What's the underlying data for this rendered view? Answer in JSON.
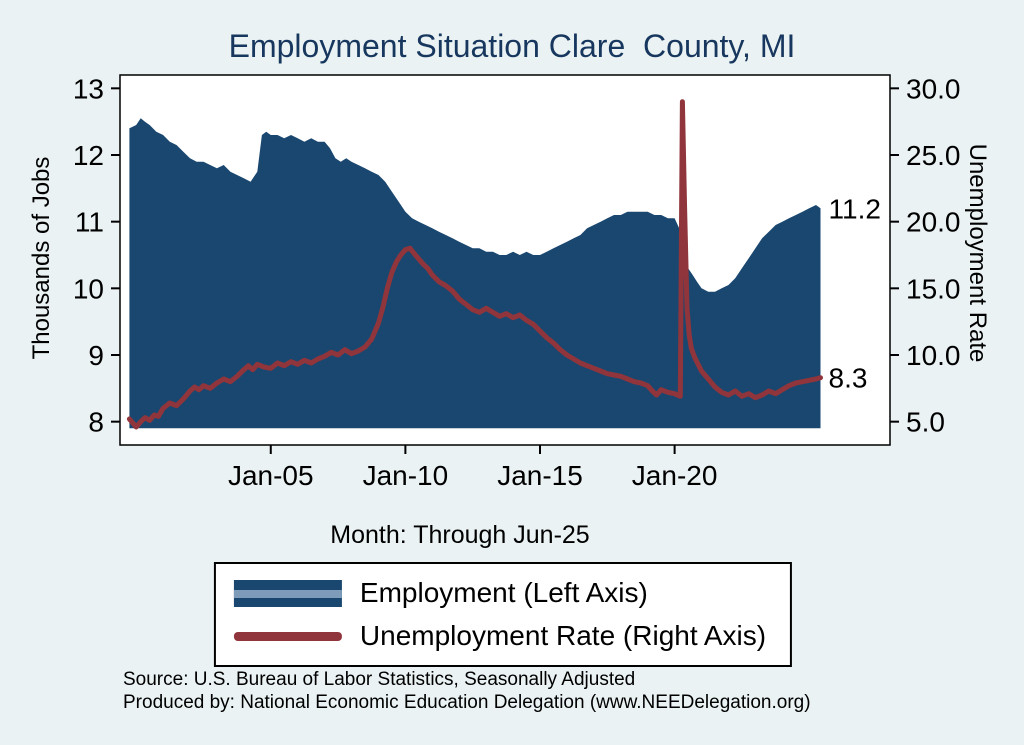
{
  "colors": {
    "background": "#eaf2f3",
    "plot_background": "#ffffff",
    "title": "#17375e",
    "area": "#1a476f",
    "line": "#90353b",
    "legend_band": "#7e9cb9",
    "text": "#000000"
  },
  "chart_data": {
    "type": "area+line",
    "title": "Employment Situation Clare  County, MI",
    "x_axis": {
      "label": "Month: Through Jun-25",
      "tick_labels": [
        "Jan-05",
        "Jan-10",
        "Jan-15",
        "Jan-20"
      ],
      "tick_years": [
        2005,
        2010,
        2015,
        2020
      ],
      "range_years": [
        1999.4,
        2028.0
      ]
    },
    "y_left": {
      "label": "Thousands of Jobs",
      "ticks": [
        8,
        9,
        10,
        11,
        12,
        13
      ],
      "range": [
        7.65,
        13.2
      ],
      "area_base": 7.9
    },
    "y_right": {
      "label": "Unemployment Rate",
      "tick_labels": [
        "5.0",
        "10.0",
        "15.0",
        "20.0",
        "25.0",
        "30.0"
      ],
      "tick_values": [
        5,
        10,
        15,
        20,
        25,
        30
      ]
    },
    "legend_position": "bottom",
    "grid": false,
    "series": [
      {
        "name": "Employment (Left Axis)",
        "type": "area",
        "axis": "left",
        "color": "#1a476f",
        "end_label": "11.2",
        "points": [
          [
            1999.75,
            12.4
          ],
          [
            2000,
            12.45
          ],
          [
            2000.17,
            12.55
          ],
          [
            2000.33,
            12.5
          ],
          [
            2000.5,
            12.45
          ],
          [
            2000.75,
            12.35
          ],
          [
            2001,
            12.3
          ],
          [
            2001.25,
            12.2
          ],
          [
            2001.5,
            12.15
          ],
          [
            2001.75,
            12.05
          ],
          [
            2002,
            11.95
          ],
          [
            2002.25,
            11.9
          ],
          [
            2002.5,
            11.9
          ],
          [
            2002.75,
            11.85
          ],
          [
            2003,
            11.8
          ],
          [
            2003.25,
            11.85
          ],
          [
            2003.5,
            11.75
          ],
          [
            2003.75,
            11.7
          ],
          [
            2004,
            11.65
          ],
          [
            2004.25,
            11.6
          ],
          [
            2004.5,
            11.75
          ],
          [
            2004.67,
            12.3
          ],
          [
            2004.83,
            12.35
          ],
          [
            2005,
            12.3
          ],
          [
            2005.25,
            12.3
          ],
          [
            2005.5,
            12.25
          ],
          [
            2005.75,
            12.3
          ],
          [
            2006,
            12.25
          ],
          [
            2006.25,
            12.2
          ],
          [
            2006.5,
            12.25
          ],
          [
            2006.75,
            12.2
          ],
          [
            2007,
            12.2
          ],
          [
            2007.2,
            12.1
          ],
          [
            2007.4,
            11.95
          ],
          [
            2007.6,
            11.9
          ],
          [
            2007.8,
            11.95
          ],
          [
            2008,
            11.9
          ],
          [
            2008.25,
            11.85
          ],
          [
            2008.5,
            11.8
          ],
          [
            2008.75,
            11.75
          ],
          [
            2009,
            11.7
          ],
          [
            2009.25,
            11.6
          ],
          [
            2009.5,
            11.45
          ],
          [
            2009.75,
            11.3
          ],
          [
            2010,
            11.15
          ],
          [
            2010.25,
            11.05
          ],
          [
            2010.5,
            11.0
          ],
          [
            2010.75,
            10.95
          ],
          [
            2011,
            10.9
          ],
          [
            2011.25,
            10.85
          ],
          [
            2011.5,
            10.8
          ],
          [
            2011.75,
            10.75
          ],
          [
            2012,
            10.7
          ],
          [
            2012.25,
            10.65
          ],
          [
            2012.5,
            10.6
          ],
          [
            2012.75,
            10.6
          ],
          [
            2013,
            10.55
          ],
          [
            2013.25,
            10.55
          ],
          [
            2013.5,
            10.5
          ],
          [
            2013.75,
            10.5
          ],
          [
            2014,
            10.55
          ],
          [
            2014.25,
            10.5
          ],
          [
            2014.5,
            10.55
          ],
          [
            2014.75,
            10.5
          ],
          [
            2015,
            10.5
          ],
          [
            2015.25,
            10.55
          ],
          [
            2015.5,
            10.6
          ],
          [
            2015.75,
            10.65
          ],
          [
            2016,
            10.7
          ],
          [
            2016.25,
            10.75
          ],
          [
            2016.5,
            10.8
          ],
          [
            2016.75,
            10.9
          ],
          [
            2017,
            10.95
          ],
          [
            2017.25,
            11.0
          ],
          [
            2017.5,
            11.05
          ],
          [
            2017.75,
            11.1
          ],
          [
            2018,
            11.1
          ],
          [
            2018.25,
            11.15
          ],
          [
            2018.5,
            11.15
          ],
          [
            2018.75,
            11.15
          ],
          [
            2019,
            11.15
          ],
          [
            2019.25,
            11.1
          ],
          [
            2019.5,
            11.1
          ],
          [
            2019.75,
            11.05
          ],
          [
            2020,
            11.05
          ],
          [
            2020.17,
            10.9
          ],
          [
            2020.29,
            10.5
          ],
          [
            2020.37,
            10.15
          ],
          [
            2020.5,
            10.3
          ],
          [
            2020.67,
            10.2
          ],
          [
            2020.83,
            10.1
          ],
          [
            2021,
            10.0
          ],
          [
            2021.25,
            9.95
          ],
          [
            2021.5,
            9.95
          ],
          [
            2021.75,
            10.0
          ],
          [
            2022,
            10.05
          ],
          [
            2022.25,
            10.15
          ],
          [
            2022.5,
            10.3
          ],
          [
            2022.75,
            10.45
          ],
          [
            2023,
            10.6
          ],
          [
            2023.25,
            10.75
          ],
          [
            2023.5,
            10.85
          ],
          [
            2023.75,
            10.95
          ],
          [
            2024,
            11.0
          ],
          [
            2024.25,
            11.05
          ],
          [
            2024.5,
            11.1
          ],
          [
            2024.75,
            11.15
          ],
          [
            2025,
            11.2
          ],
          [
            2025.25,
            11.25
          ],
          [
            2025.42,
            11.2
          ]
        ]
      },
      {
        "name": "Unemployment Rate (Right Axis)",
        "type": "line",
        "axis": "right",
        "color": "#90353b",
        "end_label": "8.3",
        "points": [
          [
            1999.75,
            5.2
          ],
          [
            2000,
            4.6
          ],
          [
            2000.17,
            5.0
          ],
          [
            2000.33,
            5.3
          ],
          [
            2000.5,
            5.1
          ],
          [
            2000.67,
            5.5
          ],
          [
            2000.83,
            5.4
          ],
          [
            2001,
            6.0
          ],
          [
            2001.25,
            6.4
          ],
          [
            2001.5,
            6.2
          ],
          [
            2001.75,
            6.7
          ],
          [
            2002,
            7.3
          ],
          [
            2002.17,
            7.6
          ],
          [
            2002.33,
            7.4
          ],
          [
            2002.5,
            7.7
          ],
          [
            2002.75,
            7.5
          ],
          [
            2003,
            7.9
          ],
          [
            2003.25,
            8.2
          ],
          [
            2003.5,
            8.0
          ],
          [
            2003.75,
            8.4
          ],
          [
            2004,
            8.9
          ],
          [
            2004.17,
            9.2
          ],
          [
            2004.33,
            8.9
          ],
          [
            2004.5,
            9.3
          ],
          [
            2004.75,
            9.1
          ],
          [
            2005,
            9.0
          ],
          [
            2005.25,
            9.4
          ],
          [
            2005.5,
            9.2
          ],
          [
            2005.75,
            9.5
          ],
          [
            2006,
            9.3
          ],
          [
            2006.25,
            9.6
          ],
          [
            2006.5,
            9.4
          ],
          [
            2006.75,
            9.7
          ],
          [
            2007,
            9.9
          ],
          [
            2007.25,
            10.2
          ],
          [
            2007.5,
            10.0
          ],
          [
            2007.75,
            10.4
          ],
          [
            2008,
            10.1
          ],
          [
            2008.25,
            10.3
          ],
          [
            2008.5,
            10.6
          ],
          [
            2008.75,
            11.2
          ],
          [
            2009,
            12.4
          ],
          [
            2009.17,
            13.6
          ],
          [
            2009.33,
            15.0
          ],
          [
            2009.5,
            16.2
          ],
          [
            2009.67,
            17.0
          ],
          [
            2009.83,
            17.5
          ],
          [
            2010,
            17.9
          ],
          [
            2010.17,
            18.0
          ],
          [
            2010.33,
            17.6
          ],
          [
            2010.5,
            17.2
          ],
          [
            2010.67,
            16.8
          ],
          [
            2010.83,
            16.5
          ],
          [
            2011,
            16.0
          ],
          [
            2011.25,
            15.5
          ],
          [
            2011.5,
            15.2
          ],
          [
            2011.75,
            14.8
          ],
          [
            2012,
            14.2
          ],
          [
            2012.25,
            13.8
          ],
          [
            2012.5,
            13.4
          ],
          [
            2012.75,
            13.2
          ],
          [
            2013,
            13.5
          ],
          [
            2013.25,
            13.2
          ],
          [
            2013.5,
            12.9
          ],
          [
            2013.75,
            13.1
          ],
          [
            2014,
            12.8
          ],
          [
            2014.25,
            13.0
          ],
          [
            2014.5,
            12.6
          ],
          [
            2014.75,
            12.3
          ],
          [
            2015,
            11.8
          ],
          [
            2015.25,
            11.3
          ],
          [
            2015.5,
            10.9
          ],
          [
            2015.75,
            10.4
          ],
          [
            2016,
            10.0
          ],
          [
            2016.25,
            9.7
          ],
          [
            2016.5,
            9.4
          ],
          [
            2016.75,
            9.2
          ],
          [
            2017,
            9.0
          ],
          [
            2017.25,
            8.8
          ],
          [
            2017.5,
            8.6
          ],
          [
            2017.75,
            8.5
          ],
          [
            2018,
            8.4
          ],
          [
            2018.25,
            8.2
          ],
          [
            2018.5,
            8.0
          ],
          [
            2018.75,
            7.9
          ],
          [
            2019,
            7.7
          ],
          [
            2019.17,
            7.3
          ],
          [
            2019.33,
            7.0
          ],
          [
            2019.5,
            7.4
          ],
          [
            2019.75,
            7.2
          ],
          [
            2020,
            7.1
          ],
          [
            2020.21,
            6.9
          ],
          [
            2020.29,
            29.0
          ],
          [
            2020.37,
            21.0
          ],
          [
            2020.46,
            13.5
          ],
          [
            2020.54,
            11.5
          ],
          [
            2020.62,
            10.5
          ],
          [
            2020.75,
            9.8
          ],
          [
            2021,
            8.8
          ],
          [
            2021.25,
            8.2
          ],
          [
            2021.5,
            7.6
          ],
          [
            2021.75,
            7.2
          ],
          [
            2022,
            7.0
          ],
          [
            2022.25,
            7.3
          ],
          [
            2022.5,
            6.9
          ],
          [
            2022.75,
            7.1
          ],
          [
            2023,
            6.8
          ],
          [
            2023.25,
            7.0
          ],
          [
            2023.5,
            7.3
          ],
          [
            2023.75,
            7.1
          ],
          [
            2024,
            7.4
          ],
          [
            2024.25,
            7.7
          ],
          [
            2024.5,
            7.9
          ],
          [
            2024.75,
            8.0
          ],
          [
            2025,
            8.1
          ],
          [
            2025.25,
            8.2
          ],
          [
            2025.42,
            8.3
          ]
        ]
      }
    ]
  },
  "footer": {
    "source": "Source: U.S. Bureau of Labor Statistics, Seasonally Adjusted",
    "produced_by": "Produced by: National Economic Education Delegation (www.NEEDelegation.org)"
  }
}
